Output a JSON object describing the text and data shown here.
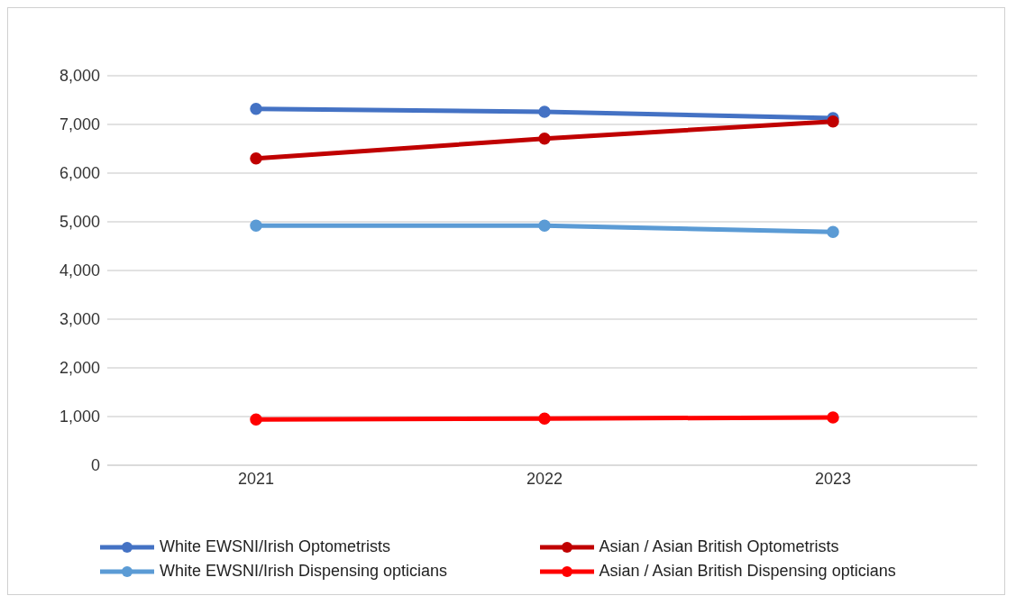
{
  "chart_data": {
    "type": "line",
    "categories": [
      "2021",
      "2022",
      "2023"
    ],
    "series": [
      {
        "name": "White EWSNI/Irish Optometrists",
        "color": "#4472c4",
        "values": [
          7320,
          7260,
          7130
        ]
      },
      {
        "name": "Asian / Asian British Optometrists",
        "color": "#c00000",
        "values": [
          6300,
          6710,
          7060
        ]
      },
      {
        "name": "White EWSNI/Irish Dispensing opticians",
        "color": "#5b9bd5",
        "values": [
          4920,
          4920,
          4790
        ]
      },
      {
        "name": "Asian / Asian British Dispensing opticians",
        "color": "#ff0000",
        "values": [
          940,
          960,
          980
        ]
      }
    ],
    "ylim": [
      0,
      8000
    ],
    "yticks": [
      0,
      {
        "value": 1000,
        "label": "1,000"
      },
      {
        "value": 2000,
        "label": "2,000"
      },
      {
        "value": 3000,
        "label": "3,000"
      },
      {
        "value": 4000,
        "label": "4,000"
      },
      {
        "value": 5000,
        "label": "5,000"
      },
      {
        "value": 6000,
        "label": "6,000"
      },
      {
        "value": 7000,
        "label": "7,000"
      },
      {
        "value": 8000,
        "label": "8,000"
      }
    ],
    "grid": "y",
    "legend": "bottom",
    "marker": "circle",
    "line_style": "solid"
  }
}
